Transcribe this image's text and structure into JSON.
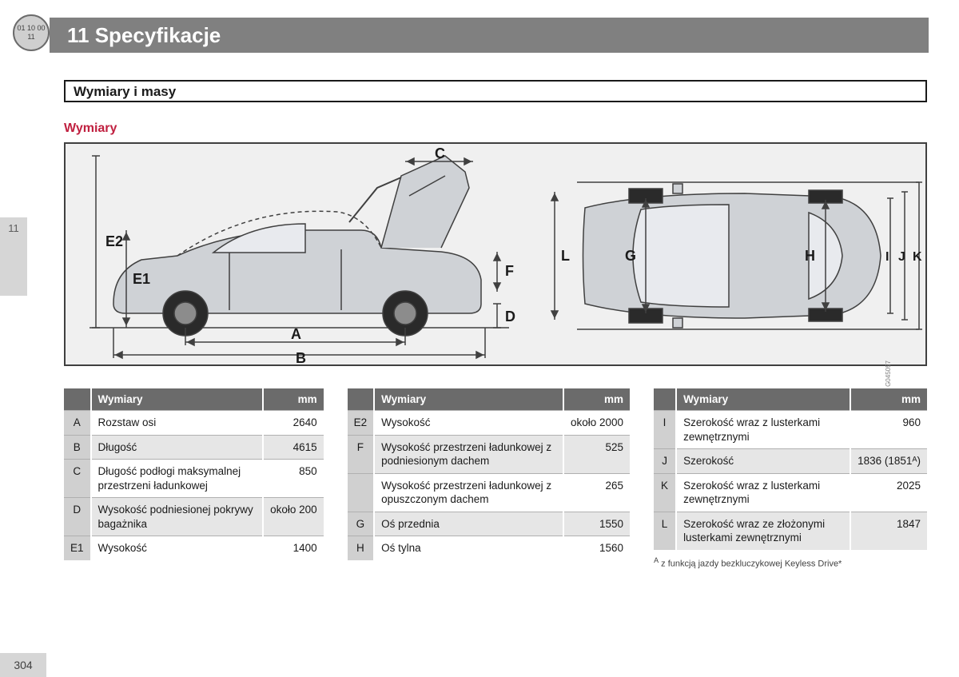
{
  "chapterIcon": "01 10\n00 11",
  "header": "11 Specyfikacje",
  "pageTab": "11",
  "section": "Wymiary i masy",
  "subTitle": "Wymiary",
  "diagram": {
    "bg": "#f0f0f0",
    "line": "#404040",
    "fill": "#cfd2d6",
    "wheel": "#2a2a2a",
    "letters": {
      "A": "A",
      "B": "B",
      "C": "C",
      "D": "D",
      "E1": "E1",
      "E2": "E2",
      "F": "F",
      "G": "G",
      "H": "H",
      "I": "I",
      "J": "J",
      "K": "K",
      "L": "L"
    },
    "codeLabel": "G045057"
  },
  "tableHeaders": {
    "key": "",
    "dim": "Wymiary",
    "mm": "mm"
  },
  "tables": [
    {
      "rows": [
        {
          "k": "A",
          "d": "Rozstaw osi",
          "v": "2640"
        },
        {
          "k": "B",
          "d": "Długość",
          "v": "4615"
        },
        {
          "k": "C",
          "d": "Długość podłogi maksymalnej przestrzeni ładunkowej",
          "v": "850"
        },
        {
          "k": "D",
          "d": "Wysokość podniesionej pokrywy bagażnika",
          "v": "około 200"
        },
        {
          "k": "E1",
          "d": "Wysokość",
          "v": "1400"
        }
      ]
    },
    {
      "rows": [
        {
          "k": "E2",
          "d": "Wysokość",
          "v": "około 2000"
        },
        {
          "k": "F",
          "d": "Wysokość przestrzeni ładunkowej z podniesionym dachem",
          "v": "525"
        },
        {
          "k": "",
          "d": "Wysokość przestrzeni ładunkowej z opuszczonym dachem",
          "v": "265"
        },
        {
          "k": "G",
          "d": "Oś przednia",
          "v": "1550"
        },
        {
          "k": "H",
          "d": "Oś tylna",
          "v": "1560"
        }
      ]
    },
    {
      "rows": [
        {
          "k": "I",
          "d": "Szerokość wraz z lusterkami zewnętrznymi",
          "v": "960"
        },
        {
          "k": "J",
          "d": "Szerokość",
          "v": "1836 (1851ᴬ)"
        },
        {
          "k": "K",
          "d": "Szerokość wraz z lusterkami zewnętrznymi",
          "v": "2025"
        },
        {
          "k": "L",
          "d": "Szerokość wraz ze złożonymi lusterkami zewnętrznymi",
          "v": "1847"
        }
      ],
      "footnote": "z funkcją jazdy bezkluczykowej Keyless Drive*",
      "footMark": "A"
    }
  ],
  "pageNumber": "304"
}
